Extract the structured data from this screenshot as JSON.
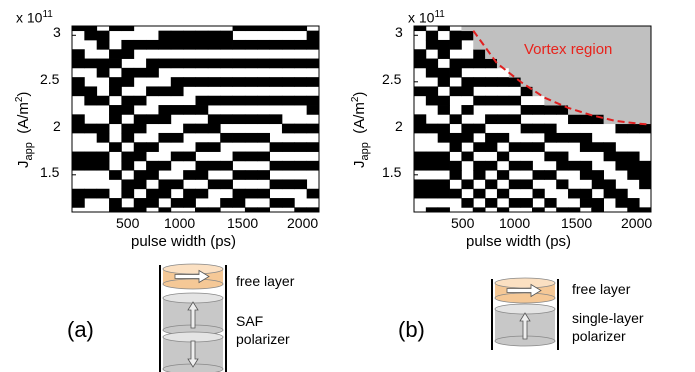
{
  "chart_data": [
    {
      "type": "heatmap",
      "panel": "(a)",
      "xlabel": "pulse width (ps)",
      "ylabel_main": "J",
      "ylabel_sub": "app",
      "ylabel_unit": "(A/m",
      "ylabel_unit_sup": "2",
      "ylabel_unit_end": ")",
      "y_scale_label": "x 10",
      "y_scale_exp": "11",
      "x_ticks": [
        "500",
        "1000",
        "1500",
        "2000"
      ],
      "y_ticks": [
        "3",
        "2.5",
        "2",
        "1.5"
      ],
      "xlim": [
        0,
        2000
      ],
      "ylim": [
        1.1,
        3.1
      ],
      "x_min": 100,
      "x_max": 2000,
      "x_step": 100,
      "y_min": 1.1,
      "y_max": 3.1,
      "y_step": 0.1,
      "pattern_base": [
        17.8,
        14.0,
        12.2,
        11.2,
        10.4,
        9.8,
        9.3,
        8.9,
        8.5,
        8.2,
        7.9,
        7.6,
        7.3,
        7.1,
        6.9,
        6.7,
        6.5,
        6.4,
        6.3,
        6.2
      ],
      "pattern_slope": 3.2,
      "vortex_region": false,
      "device": {
        "free_layer": "free layer",
        "polarizer_line1": "SAF",
        "polarizer_line2": "polarizer"
      }
    },
    {
      "type": "heatmap",
      "panel": "(b)",
      "xlabel": "pulse width (ps)",
      "ylabel_main": "J",
      "ylabel_sub": "app",
      "ylabel_unit": "(A/m",
      "ylabel_unit_sup": "2",
      "ylabel_unit_end": ")",
      "y_scale_label": "x 10",
      "y_scale_exp": "11",
      "x_ticks": [
        "500",
        "1000",
        "1500",
        "2000"
      ],
      "y_ticks": [
        "3",
        "2.5",
        "2",
        "1.5"
      ],
      "xlim": [
        0,
        2000
      ],
      "ylim": [
        1.1,
        3.1
      ],
      "x_min": 100,
      "x_max": 2000,
      "x_step": 100,
      "y_min": 1.1,
      "y_max": 3.1,
      "y_step": 0.1,
      "pattern_base": [
        17.8,
        14.0,
        12.2,
        11.2,
        10.4,
        9.8,
        9.3,
        8.9,
        8.5,
        8.2,
        7.9,
        7.6,
        7.3,
        7.1,
        6.9,
        6.7,
        6.5,
        6.4,
        6.3,
        6.2
      ],
      "pattern_slope": 5.6,
      "vortex_region": true,
      "vortex_label": "Vortex region",
      "vortex_boundary": [
        [
          500,
          3.05
        ],
        [
          700,
          2.7
        ],
        [
          900,
          2.5
        ],
        [
          1100,
          2.33
        ],
        [
          1300,
          2.22
        ],
        [
          1500,
          2.14
        ],
        [
          1700,
          2.08
        ],
        [
          1900,
          2.05
        ],
        [
          2000,
          2.04
        ]
      ],
      "device": {
        "free_layer": "free layer",
        "polarizer_line1": "single-layer",
        "polarizer_line2": "polarizer"
      }
    }
  ],
  "colors": {
    "switched": "#000000",
    "not_switched": "#ffffff",
    "vortex_fill": "#c0c0c0",
    "vortex_line": "#e02020",
    "free_layer": "#f5c896",
    "polarizer": "#c8c8c8"
  }
}
